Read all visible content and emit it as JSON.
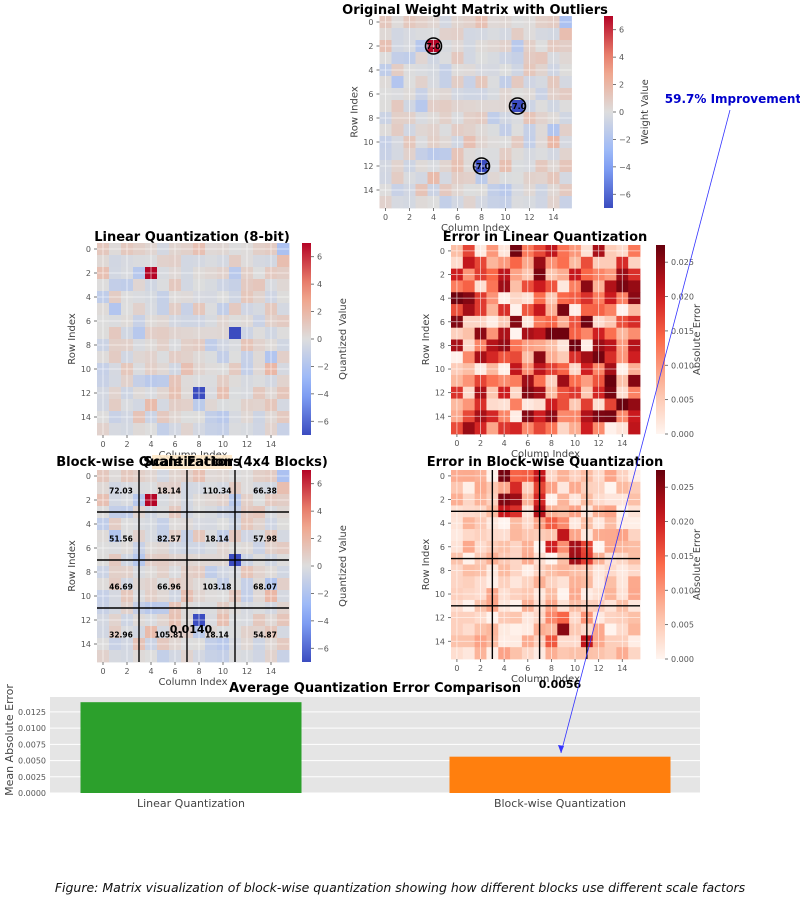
{
  "caption": "Figure: Matrix visualization of block-wise quantization showing how different blocks use different scale factors",
  "improvement_label": "59.7% Improvement",
  "colors": {
    "linear_bar": "#2ca02c",
    "blockwise_bar": "#ff7f0e",
    "improvement_text": "#0000cc",
    "arrow": "#3333ff",
    "outlier_circle": "#000000",
    "block_grid": "#000000"
  },
  "chart_data": [
    {
      "id": "original",
      "type": "heatmap",
      "title": "Original Weight Matrix with Outliers",
      "xlabel": "Column Index",
      "ylabel": "Row Index",
      "colorbar_label": "Weight Value",
      "colormap": "coolwarm",
      "vmin": -7.0,
      "vmax": 7.0,
      "colorbar_ticks": [
        6,
        4,
        2,
        0,
        -2,
        -4,
        -6
      ],
      "ticks": [
        0,
        2,
        4,
        6,
        8,
        10,
        12,
        14
      ],
      "size": [
        16,
        16
      ],
      "outliers": [
        {
          "row": 2,
          "col": 4,
          "value": 7.0,
          "label": "7.0"
        },
        {
          "row": 7,
          "col": 11,
          "value": -7.0,
          "label": "-7.0"
        },
        {
          "row": 12,
          "col": 8,
          "value": -7.0,
          "label": "-7.0"
        }
      ]
    },
    {
      "id": "linear",
      "type": "heatmap",
      "title": "Linear Quantization (8-bit)",
      "xlabel": "Column Index",
      "ylabel": "Row Index",
      "colorbar_label": "Quantized Value",
      "colormap": "coolwarm",
      "vmin": -7.0,
      "vmax": 7.0,
      "colorbar_ticks": [
        6,
        4,
        2,
        0,
        -2,
        -4,
        -6
      ],
      "ticks": [
        0,
        2,
        4,
        6,
        8,
        10,
        12,
        14
      ],
      "size": [
        16,
        16
      ]
    },
    {
      "id": "linear_error",
      "type": "heatmap",
      "title": "Error in Linear Quantization",
      "xlabel": "Column Index",
      "ylabel": "Row Index",
      "colorbar_label": "Absolute Error",
      "colormap": "Reds",
      "vmin": 0,
      "vmax": 0.0275,
      "colorbar_ticks": [
        "0.025",
        "0.020",
        "0.015",
        "0.010",
        "0.005",
        "0.000"
      ],
      "colorbar_tick_values": [
        0.025,
        0.02,
        0.015,
        0.01,
        0.005,
        0.0
      ],
      "ticks": [
        0,
        2,
        4,
        6,
        8,
        10,
        12,
        14
      ],
      "size": [
        16,
        16
      ]
    },
    {
      "id": "blockwise",
      "type": "heatmap",
      "title": "Block-wise Quantization (4x4 Blocks)",
      "title_overlap": "Scale Factors",
      "xlabel": "Column Index",
      "ylabel": "Row Index",
      "colorbar_label": "Quantized Value",
      "colormap": "coolwarm",
      "vmin": -7.0,
      "vmax": 7.0,
      "colorbar_ticks": [
        6,
        4,
        2,
        0,
        -2,
        -4,
        -6
      ],
      "ticks": [
        0,
        2,
        4,
        6,
        8,
        10,
        12,
        14
      ],
      "size": [
        16,
        16
      ],
      "block_size": 4,
      "scale_factors": [
        [
          "72.03",
          "18.14",
          "110.34",
          "66.38"
        ],
        [
          "51.56",
          "82.57",
          "18.14",
          "57.98"
        ],
        [
          "46.69",
          "66.96",
          "103.18",
          "68.07"
        ],
        [
          "32.96",
          "105.81",
          "18.14",
          "54.87"
        ]
      ]
    },
    {
      "id": "blockwise_error",
      "type": "heatmap",
      "title": "Error in Block-wise Quantization",
      "xlabel": "Column Index",
      "ylabel": "Row Index",
      "colorbar_label": "Absolute Error",
      "colormap": "Reds",
      "vmin": 0,
      "vmax": 0.0275,
      "colorbar_ticks": [
        "0.025",
        "0.020",
        "0.015",
        "0.010",
        "0.005",
        "0.000"
      ],
      "colorbar_tick_values": [
        0.025,
        0.02,
        0.015,
        0.01,
        0.005,
        0.0
      ],
      "ticks": [
        0,
        2,
        4,
        6,
        8,
        10,
        12,
        14
      ],
      "size": [
        16,
        16
      ],
      "block_size": 4
    },
    {
      "id": "comparison",
      "type": "bar",
      "title": "Average Quantization Error Comparison",
      "xlabel": "",
      "ylabel": "Mean Absolute Error",
      "categories": [
        "Linear Quantization",
        "Block-wise Quantization"
      ],
      "values": [
        0.014,
        0.0056
      ],
      "value_labels": [
        "0.0140",
        "0.0056"
      ],
      "ylim": [
        0,
        0.0148
      ],
      "yticks": [
        "0.0000",
        "0.0025",
        "0.0050",
        "0.0075",
        "0.0100",
        "0.0125"
      ],
      "ytick_values": [
        0,
        0.0025,
        0.005,
        0.0075,
        0.01,
        0.0125
      ],
      "grid": true
    }
  ]
}
